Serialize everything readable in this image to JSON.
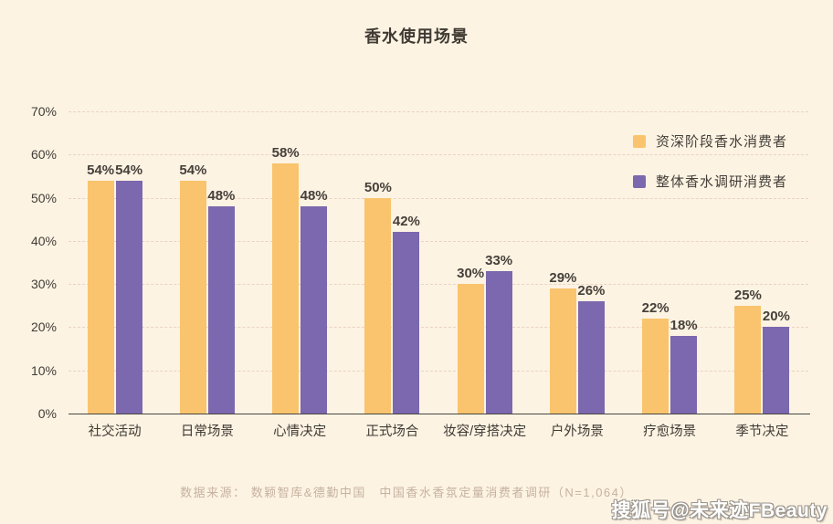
{
  "title": "香水使用场景",
  "chart_data": {
    "type": "bar",
    "title": "香水使用场景",
    "categories": [
      "社交活动",
      "日常场景",
      "心情决定",
      "正式场合",
      "妆容/穿搭决定",
      "户外场景",
      "疗愈场景",
      "季节决定"
    ],
    "series": [
      {
        "name": "资深阶段香水消费者",
        "color": "#F9C46D",
        "values": [
          54,
          54,
          58,
          50,
          30,
          29,
          22,
          25
        ]
      },
      {
        "name": "整体香水调研消费者",
        "color": "#7B68AE",
        "values": [
          54,
          48,
          48,
          42,
          33,
          26,
          18,
          20
        ]
      }
    ],
    "value_label_format": "percent",
    "yticks": [
      "70%",
      "60%",
      "50%",
      "40%",
      "30%",
      "20%",
      "10%",
      "0%"
    ],
    "ylim": [
      0,
      70
    ],
    "grid": "horizontal-dashed",
    "legend_position": "top-right"
  },
  "footer": {
    "source_text": "数据来源： 数颖智库&德勤中国　中国香水香氛定量消费者调研（N=1,064）"
  },
  "watermark": {
    "text": "搜狐号@未来迹FBeauty"
  },
  "colors": {
    "background": "#FDF3E3",
    "series_senior": "#F9C46D",
    "series_overall": "#7B68AE",
    "gridline": "#EAD3C2",
    "axis_line": "#4A453E",
    "text_dark": "#3F3A33",
    "footer_text": "#C6B2A0",
    "watermark_text": "#FFFFFF"
  }
}
